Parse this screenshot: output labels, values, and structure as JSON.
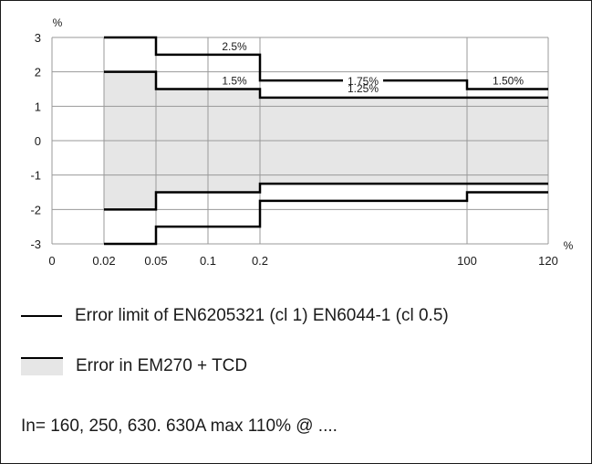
{
  "chart_data": {
    "type": "line",
    "x_axis": {
      "unit_label": "%",
      "ticks": [
        "0",
        "0.02",
        "0.05",
        "0.1",
        "0.2",
        "100",
        "120"
      ]
    },
    "y_axis": {
      "unit_label": "%",
      "ticks": [
        "3",
        "2",
        "1",
        "0",
        "-1",
        "-2",
        "-3"
      ],
      "ylim": [
        -3,
        3
      ]
    },
    "grid": true,
    "series": [
      {
        "name": "Error limit of EN6205321 (cl 1) EN6044-1 (cl 0.5)",
        "style": "line",
        "steps": [
          {
            "from": "0.02",
            "to": "0.05",
            "upper": 3,
            "lower": -3
          },
          {
            "from": "0.05",
            "to": "0.2",
            "upper": 2.5,
            "lower": -2.5
          },
          {
            "from": "0.2",
            "to": "100",
            "upper": 1.75,
            "lower": -1.75
          },
          {
            "from": "100",
            "to": "120",
            "upper": 1.5,
            "lower": -1.5
          }
        ]
      },
      {
        "name": "Error in EM270 + TCD",
        "style": "shaded-band",
        "steps": [
          {
            "from": "0.02",
            "to": "0.05",
            "upper": 2,
            "lower": -2
          },
          {
            "from": "0.05",
            "to": "0.2",
            "upper": 1.5,
            "lower": -1.5
          },
          {
            "from": "0.2",
            "to": "120",
            "upper": 1.25,
            "lower": -1.25
          }
        ]
      }
    ],
    "annotations": [
      "2.5%",
      "1.5%",
      "1.75%",
      "1.25%",
      "1.50%"
    ]
  },
  "legend": {
    "line_label": "Error limit of EN6205321 (cl 1) EN6044-1 (cl 0.5)",
    "band_label": "Error in EM270 + TCD"
  },
  "note": "In= 160, 250, 630. 630A max 110% @ ....",
  "colors": {
    "band_fill": "#e6e6e6",
    "line": "#000000",
    "grid": "#999999"
  }
}
